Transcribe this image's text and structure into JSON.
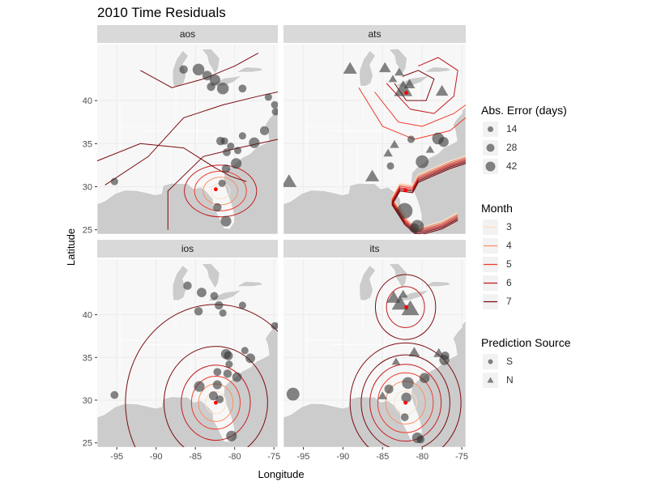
{
  "title": "2010 Time Residuals",
  "chart_data": {
    "type": "scatter",
    "title": "2010 Time Residuals",
    "xlabel": "Longitude",
    "ylabel": "Latitude",
    "xlim": [
      -97.5,
      -74.5
    ],
    "ylim": [
      24.5,
      46.5
    ],
    "x_ticks": [
      -95,
      -90,
      -85,
      -80,
      -75
    ],
    "y_ticks": [
      25,
      30,
      35,
      40
    ],
    "x_tick_labels": [
      "-95",
      "-90",
      "-85",
      "-80",
      "-75"
    ],
    "y_tick_labels": [
      "25",
      "30",
      "35",
      "40"
    ],
    "facets": [
      "aos",
      "ats",
      "ios",
      "its"
    ],
    "legends": {
      "size": {
        "title": "Abs. Error (days)",
        "labels": [
          "14",
          "28",
          "42"
        ]
      },
      "month": {
        "title": "Month",
        "labels": [
          "3",
          "4",
          "5",
          "6",
          "7"
        ],
        "colors": [
          "#fde0c5",
          "#fb8f64",
          "#ef3b2c",
          "#c2191c",
          "#7a0c10"
        ]
      },
      "source": {
        "title": "Prediction Source",
        "labels": [
          "S",
          "N"
        ]
      }
    },
    "panels": [
      {
        "name": "aos",
        "origin": [
          -82.4,
          29.7
        ],
        "points": [
          {
            "x": -95.3,
            "y": 30.6,
            "err": 12,
            "src": "S"
          },
          {
            "x": -86.5,
            "y": 43.6,
            "err": 16,
            "src": "S"
          },
          {
            "x": -84.6,
            "y": 43.6,
            "err": 28,
            "src": "S"
          },
          {
            "x": -83.5,
            "y": 42.9,
            "err": 20,
            "src": "S"
          },
          {
            "x": -82.5,
            "y": 42.4,
            "err": 24,
            "src": "S"
          },
          {
            "x": -83.0,
            "y": 41.6,
            "err": 16,
            "src": "S"
          },
          {
            "x": -81.5,
            "y": 41.4,
            "err": 28,
            "src": "S"
          },
          {
            "x": -79.0,
            "y": 41.4,
            "err": 14,
            "src": "S"
          },
          {
            "x": -75.7,
            "y": 40.4,
            "err": 12,
            "src": "S"
          },
          {
            "x": -74.9,
            "y": 39.5,
            "err": 12,
            "src": "S"
          },
          {
            "x": -74.8,
            "y": 38.7,
            "err": 12,
            "src": "S"
          },
          {
            "x": -76.2,
            "y": 36.5,
            "err": 18,
            "src": "S"
          },
          {
            "x": -77.5,
            "y": 35.1,
            "err": 24,
            "src": "S"
          },
          {
            "x": -79.0,
            "y": 35.9,
            "err": 12,
            "src": "S"
          },
          {
            "x": -81.8,
            "y": 35.3,
            "err": 16,
            "src": "S"
          },
          {
            "x": -81.3,
            "y": 35.3,
            "err": 12,
            "src": "S"
          },
          {
            "x": -80.5,
            "y": 34.7,
            "err": 12,
            "src": "S"
          },
          {
            "x": -79.6,
            "y": 34.2,
            "err": 12,
            "src": "S"
          },
          {
            "x": -81.0,
            "y": 34.0,
            "err": 14,
            "src": "S"
          },
          {
            "x": -79.8,
            "y": 32.7,
            "err": 24,
            "src": "S"
          },
          {
            "x": -81.1,
            "y": 32.1,
            "err": 16,
            "src": "S"
          },
          {
            "x": -81.6,
            "y": 30.4,
            "err": 12,
            "src": "S"
          },
          {
            "x": -82.2,
            "y": 27.6,
            "err": 16,
            "src": "S"
          },
          {
            "x": -81.1,
            "y": 26.0,
            "err": 24,
            "src": "S"
          }
        ]
      },
      {
        "name": "ats",
        "origin": [
          -82.1,
          29.6
        ],
        "points": [
          {
            "x": -96.8,
            "y": 30.6,
            "err": 32,
            "src": "N"
          },
          {
            "x": -89.1,
            "y": 43.7,
            "err": 28,
            "src": "N"
          },
          {
            "x": -84.7,
            "y": 43.8,
            "err": 22,
            "src": "N"
          },
          {
            "x": -82.9,
            "y": 43.3,
            "err": 14,
            "src": "N"
          },
          {
            "x": -83.7,
            "y": 42.5,
            "err": 12,
            "src": "N"
          },
          {
            "x": -82.4,
            "y": 41.3,
            "err": 42,
            "src": "N"
          },
          {
            "x": -81.6,
            "y": 41.9,
            "err": 20,
            "src": "N"
          },
          {
            "x": -77.5,
            "y": 41.1,
            "err": 24,
            "src": "N"
          },
          {
            "x": -81.4,
            "y": 35.5,
            "err": 12,
            "src": "S"
          },
          {
            "x": -83.5,
            "y": 34.9,
            "err": 14,
            "src": "N"
          },
          {
            "x": -78.0,
            "y": 35.6,
            "err": 28,
            "src": "S"
          },
          {
            "x": -77.3,
            "y": 35.2,
            "err": 22,
            "src": "S"
          },
          {
            "x": -79.0,
            "y": 34.3,
            "err": 12,
            "src": "N"
          },
          {
            "x": -80.0,
            "y": 32.9,
            "err": 32,
            "src": "S"
          },
          {
            "x": -84.3,
            "y": 33.9,
            "err": 14,
            "src": "N"
          },
          {
            "x": -86.3,
            "y": 31.2,
            "err": 28,
            "src": "N"
          },
          {
            "x": -84.0,
            "y": 32.4,
            "err": 12,
            "src": "S"
          },
          {
            "x": -82.2,
            "y": 27.2,
            "err": 42,
            "src": "S"
          },
          {
            "x": -80.6,
            "y": 25.4,
            "err": 32,
            "src": "S"
          },
          {
            "x": -81.0,
            "y": 25.2,
            "err": 20,
            "src": "S"
          }
        ]
      },
      {
        "name": "ios",
        "origin": [
          -82.4,
          29.7
        ],
        "points": [
          {
            "x": -95.3,
            "y": 30.6,
            "err": 14,
            "src": "S"
          },
          {
            "x": -86.0,
            "y": 43.4,
            "err": 16,
            "src": "S"
          },
          {
            "x": -84.2,
            "y": 42.6,
            "err": 20,
            "src": "S"
          },
          {
            "x": -82.6,
            "y": 42.2,
            "err": 14,
            "src": "S"
          },
          {
            "x": -84.6,
            "y": 40.4,
            "err": 16,
            "src": "S"
          },
          {
            "x": -82.0,
            "y": 41.1,
            "err": 16,
            "src": "S"
          },
          {
            "x": -79.0,
            "y": 41.1,
            "err": 12,
            "src": "S"
          },
          {
            "x": -81.5,
            "y": 40.2,
            "err": 12,
            "src": "S"
          },
          {
            "x": -74.9,
            "y": 38.7,
            "err": 12,
            "src": "S"
          },
          {
            "x": -81.1,
            "y": 35.4,
            "err": 22,
            "src": "S"
          },
          {
            "x": -80.8,
            "y": 35.2,
            "err": 18,
            "src": "S"
          },
          {
            "x": -78.7,
            "y": 35.8,
            "err": 12,
            "src": "S"
          },
          {
            "x": -78.0,
            "y": 34.9,
            "err": 20,
            "src": "S"
          },
          {
            "x": -80.7,
            "y": 34.2,
            "err": 12,
            "src": "S"
          },
          {
            "x": -82.2,
            "y": 33.3,
            "err": 14,
            "src": "S"
          },
          {
            "x": -80.9,
            "y": 33.1,
            "err": 16,
            "src": "S"
          },
          {
            "x": -79.7,
            "y": 32.7,
            "err": 20,
            "src": "S"
          },
          {
            "x": -84.5,
            "y": 31.6,
            "err": 24,
            "src": "S"
          },
          {
            "x": -82.2,
            "y": 31.8,
            "err": 18,
            "src": "S"
          },
          {
            "x": -82.7,
            "y": 30.5,
            "err": 18,
            "src": "S"
          },
          {
            "x": -81.9,
            "y": 30.1,
            "err": 14,
            "src": "S"
          },
          {
            "x": -80.4,
            "y": 25.8,
            "err": 24,
            "src": "S"
          }
        ]
      },
      {
        "name": "its",
        "origin": [
          -82.1,
          29.7
        ],
        "points": [
          {
            "x": -96.3,
            "y": 30.7,
            "err": 32,
            "src": "S"
          },
          {
            "x": -83.6,
            "y": 42.0,
            "err": 28,
            "src": "N"
          },
          {
            "x": -82.4,
            "y": 42.4,
            "err": 14,
            "src": "N"
          },
          {
            "x": -82.8,
            "y": 41.3,
            "err": 36,
            "src": "N"
          },
          {
            "x": -81.5,
            "y": 40.7,
            "err": 40,
            "src": "N"
          },
          {
            "x": -81.0,
            "y": 35.6,
            "err": 20,
            "src": "N"
          },
          {
            "x": -77.9,
            "y": 35.5,
            "err": 18,
            "src": "N"
          },
          {
            "x": -77.1,
            "y": 35.2,
            "err": 16,
            "src": "S"
          },
          {
            "x": -77.2,
            "y": 34.7,
            "err": 22,
            "src": "S"
          },
          {
            "x": -83.3,
            "y": 34.5,
            "err": 12,
            "src": "N"
          },
          {
            "x": -79.7,
            "y": 32.6,
            "err": 22,
            "src": "S"
          },
          {
            "x": -81.8,
            "y": 32.0,
            "err": 28,
            "src": "S"
          },
          {
            "x": -84.2,
            "y": 31.3,
            "err": 18,
            "src": "S"
          },
          {
            "x": -85.0,
            "y": 30.5,
            "err": 14,
            "src": "N"
          },
          {
            "x": -82.0,
            "y": 30.3,
            "err": 22,
            "src": "S"
          },
          {
            "x": -82.2,
            "y": 28.0,
            "err": 14,
            "src": "S"
          },
          {
            "x": -80.6,
            "y": 25.6,
            "err": 24,
            "src": "S"
          },
          {
            "x": -80.2,
            "y": 25.4,
            "err": 14,
            "src": "S"
          }
        ]
      }
    ]
  }
}
